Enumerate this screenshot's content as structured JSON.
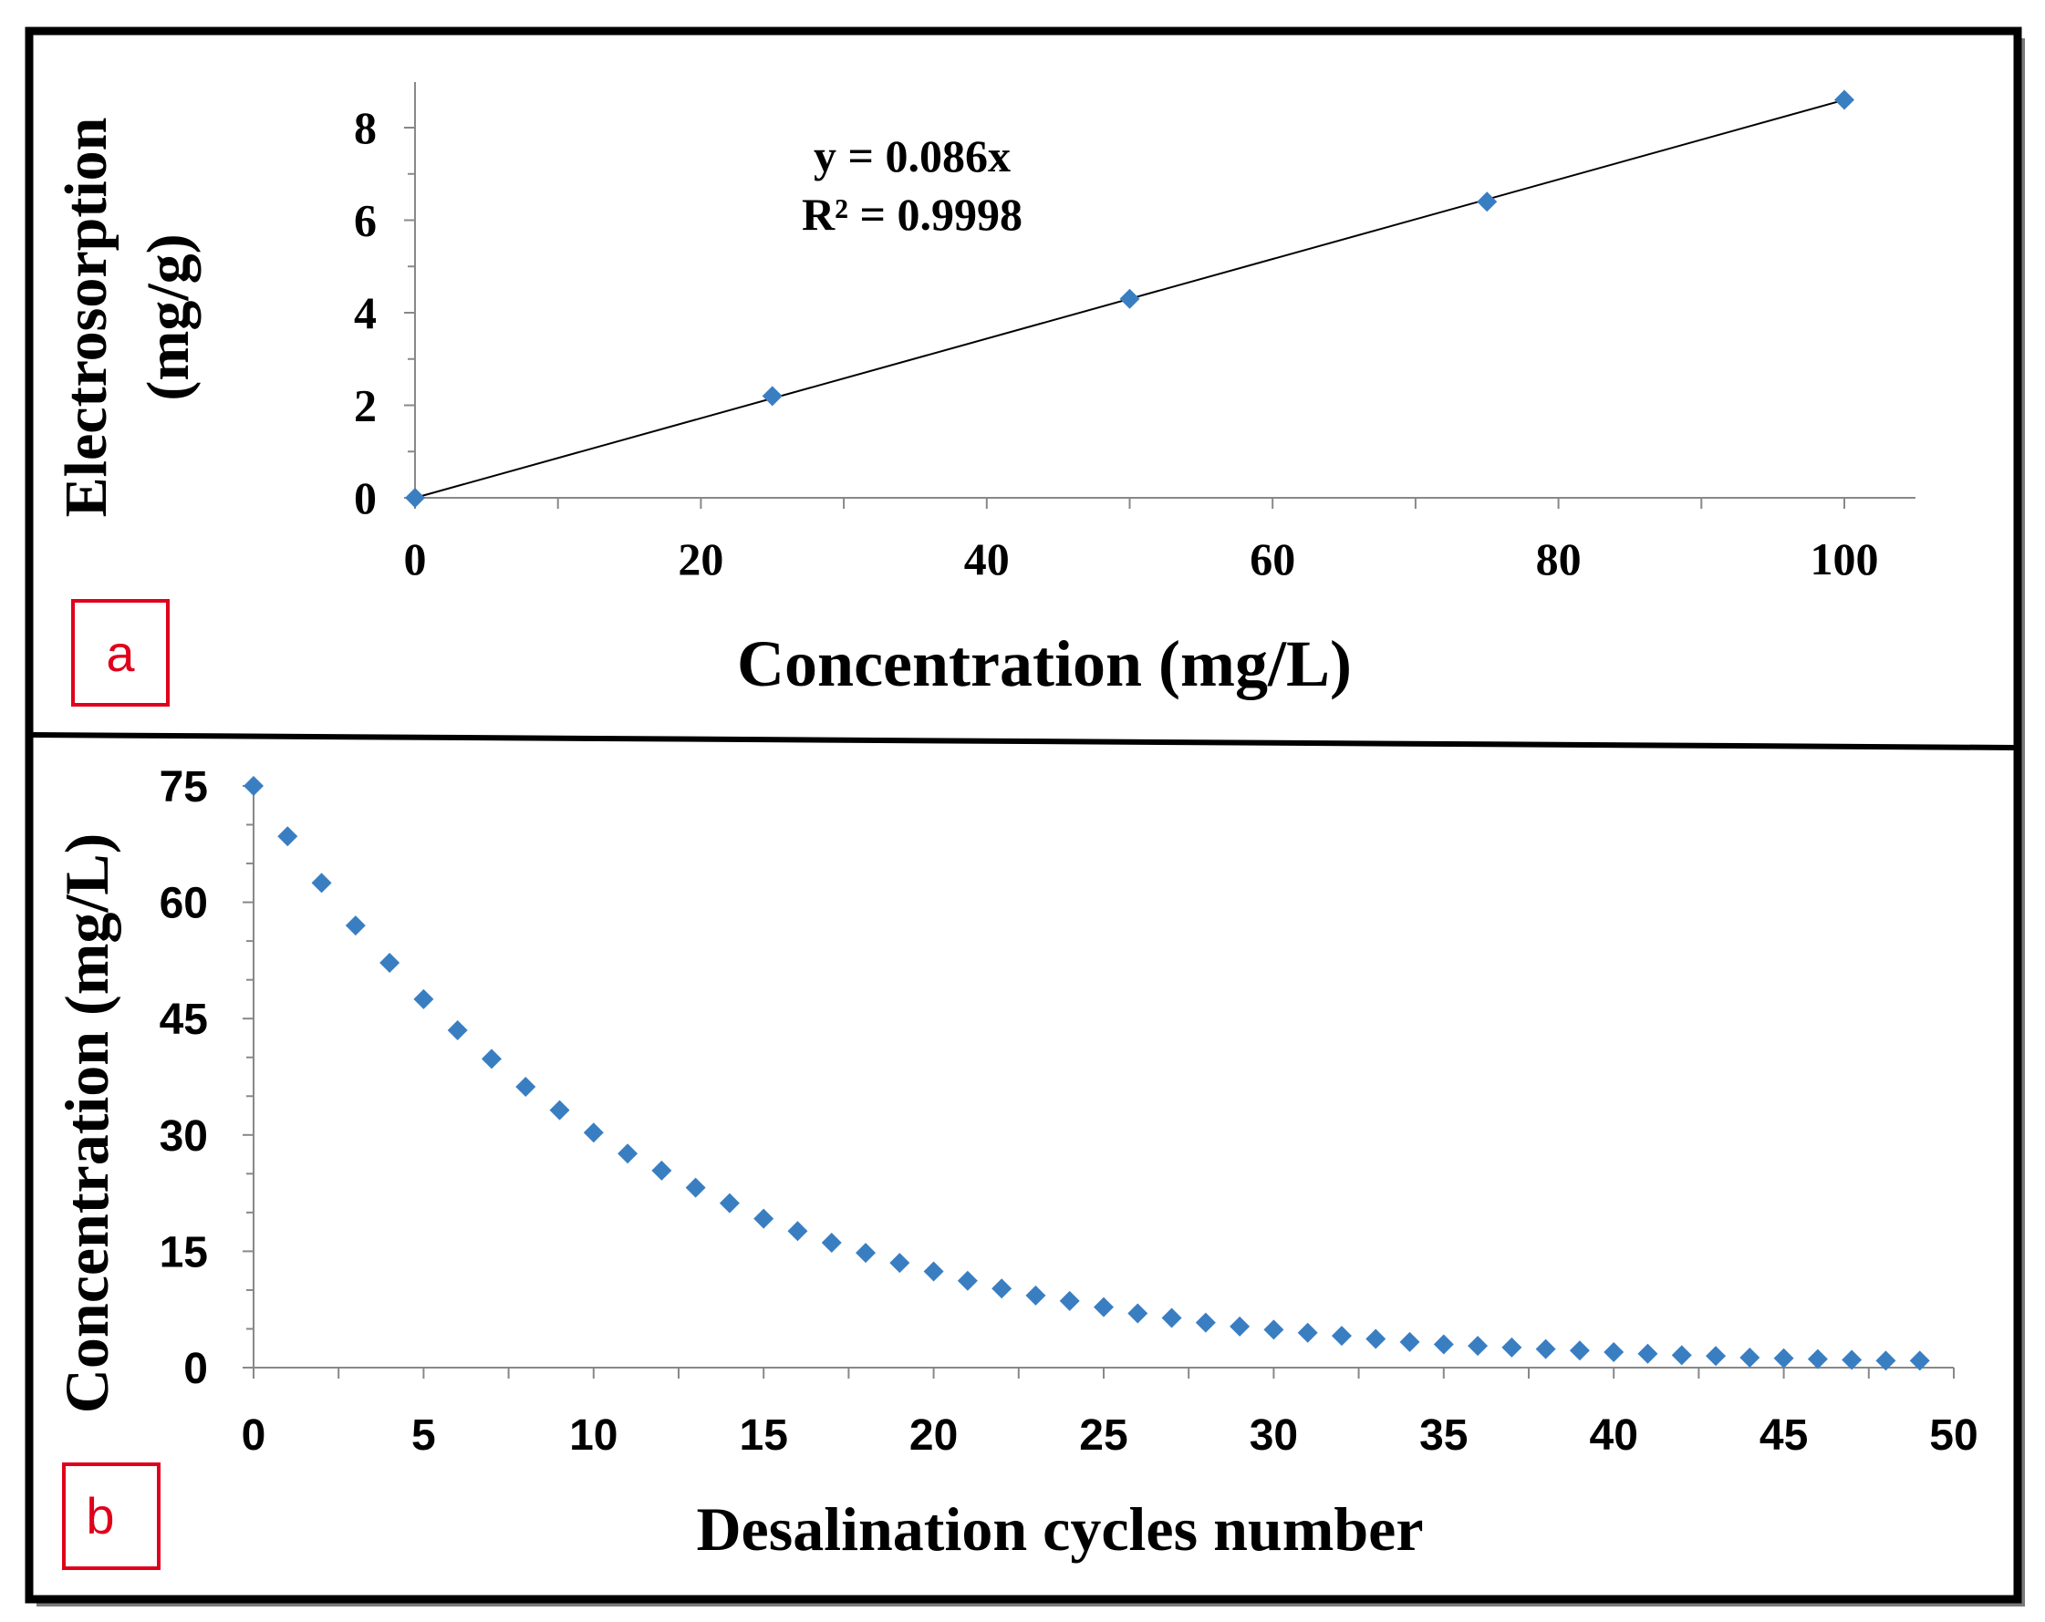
{
  "colors": {
    "marker": "#3A7EC2",
    "frame": "#000000",
    "panel_tag": "#E0001B",
    "fit_line": "#000000"
  },
  "chart_data": [
    {
      "panel": "a",
      "type": "scatter",
      "title": "",
      "xlabel": "Concentration (mg/L)",
      "ylabel_line1": "Electrosorption",
      "ylabel_line2": "(mg/g)",
      "x": [
        0,
        25,
        50,
        75,
        100
      ],
      "y": [
        0,
        2.2,
        4.3,
        6.4,
        8.6
      ],
      "xlim": [
        0,
        105
      ],
      "ylim": [
        0,
        9
      ],
      "xticks": [
        0,
        20,
        40,
        60,
        80,
        100
      ],
      "yticks": [
        0,
        2,
        4,
        6,
        8
      ],
      "trendline": {
        "slope": 0.086,
        "x_range": [
          0,
          100
        ]
      },
      "annotation": {
        "equation": "y = 0.086x",
        "r_squared": "R² = 0.9998"
      },
      "marker": "diamond",
      "grid": false
    },
    {
      "panel": "b",
      "type": "scatter",
      "title": "",
      "xlabel": "Desalination cycles number",
      "ylabel": "Concentration (mg/L)",
      "x": [
        0,
        1,
        2,
        3,
        4,
        5,
        6,
        7,
        8,
        9,
        10,
        11,
        12,
        13,
        14,
        15,
        16,
        17,
        18,
        19,
        20,
        21,
        22,
        23,
        24,
        25,
        26,
        27,
        28,
        29,
        30,
        31,
        32,
        33,
        34,
        35,
        36,
        37,
        38,
        39,
        40,
        41,
        42,
        43,
        44,
        45,
        46,
        47,
        48,
        49
      ],
      "y": [
        75,
        68.5,
        62.5,
        57,
        52.2,
        47.5,
        43.5,
        39.8,
        36.2,
        33.2,
        30.3,
        27.6,
        25.4,
        23.2,
        21.2,
        19.2,
        17.6,
        16.1,
        14.8,
        13.5,
        12.4,
        11.2,
        10.2,
        9.3,
        8.6,
        7.8,
        7.0,
        6.4,
        5.8,
        5.3,
        4.9,
        4.5,
        4.1,
        3.7,
        3.3,
        3.0,
        2.8,
        2.6,
        2.4,
        2.2,
        2.0,
        1.8,
        1.6,
        1.5,
        1.3,
        1.2,
        1.1,
        1.0,
        0.9,
        0.9
      ],
      "xlim": [
        0,
        50
      ],
      "ylim": [
        0,
        75
      ],
      "xticks": [
        0,
        5,
        10,
        15,
        20,
        25,
        30,
        35,
        40,
        45,
        50
      ],
      "yticks": [
        0,
        15,
        30,
        45,
        60,
        75
      ],
      "marker": "diamond",
      "grid": false
    }
  ]
}
